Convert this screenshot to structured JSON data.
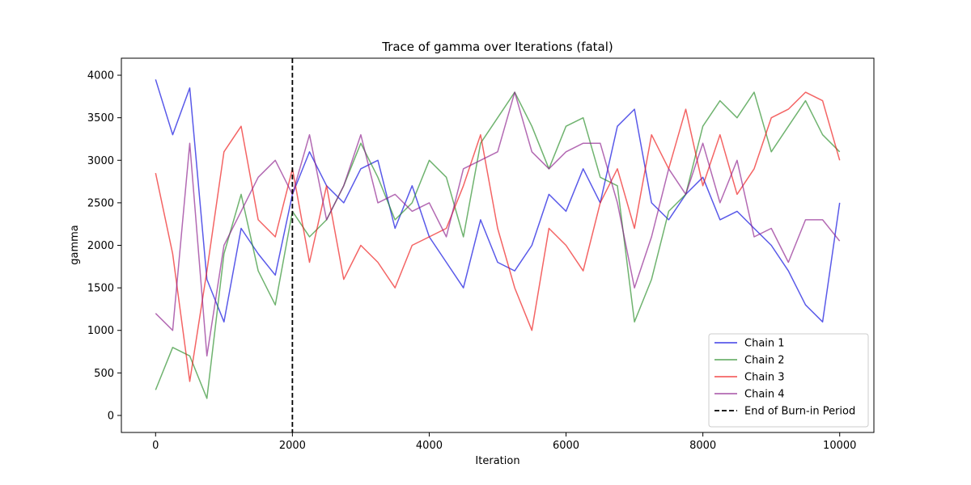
{
  "chart_data": {
    "type": "line",
    "title": "Trace of gamma over Iterations (fatal)",
    "xlabel": "Iteration",
    "ylabel": "gamma",
    "xlim": [
      -500,
      10500
    ],
    "ylim": [
      -200,
      4200
    ],
    "x_ticks": [
      0,
      2000,
      4000,
      6000,
      8000,
      10000
    ],
    "y_ticks": [
      0,
      500,
      1000,
      1500,
      2000,
      2500,
      3000,
      3500,
      4000
    ],
    "grid": false,
    "legend_position": "lower-right",
    "x": [
      0,
      250,
      500,
      750,
      1000,
      1250,
      1500,
      1750,
      2000,
      2250,
      2500,
      2750,
      3000,
      3250,
      3500,
      3750,
      4000,
      4250,
      4500,
      4750,
      5000,
      5250,
      5500,
      5750,
      6000,
      6250,
      6500,
      6750,
      7000,
      7250,
      7500,
      7750,
      8000,
      8250,
      8500,
      8750,
      9000,
      9250,
      9500,
      9750,
      10000
    ],
    "series": [
      {
        "name": "Chain 1",
        "color": "#0000dd",
        "values": [
          3950,
          3300,
          3850,
          1600,
          1100,
          2200,
          1900,
          1650,
          2600,
          3100,
          2700,
          2500,
          2900,
          3000,
          2200,
          2700,
          2100,
          1800,
          1500,
          2300,
          1800,
          1700,
          2000,
          2600,
          2400,
          2900,
          2500,
          3400,
          3600,
          2500,
          2300,
          2600,
          2800,
          2300,
          2400,
          2200,
          2000,
          1700,
          1300,
          1100,
          2500
        ]
      },
      {
        "name": "Chain 2",
        "color": "#228b22",
        "values": [
          300,
          800,
          700,
          200,
          1900,
          2600,
          1700,
          1300,
          2400,
          2100,
          2300,
          2700,
          3200,
          2800,
          2300,
          2500,
          3000,
          2800,
          2100,
          3200,
          3500,
          3800,
          3400,
          2900,
          3400,
          3500,
          2800,
          2700,
          1100,
          1600,
          2400,
          2600,
          3400,
          3700,
          3500,
          3800,
          3100,
          3400,
          3700,
          3300,
          3100
        ]
      },
      {
        "name": "Chain 3",
        "color": "#ee1111",
        "values": [
          2850,
          1900,
          400,
          1700,
          3100,
          3400,
          2300,
          2100,
          2900,
          1800,
          2700,
          1600,
          2000,
          1800,
          1500,
          2000,
          2100,
          2200,
          2700,
          3300,
          2200,
          1500,
          1000,
          2200,
          2000,
          1700,
          2500,
          2900,
          2200,
          3300,
          2900,
          3600,
          2700,
          3300,
          2600,
          2900,
          3500,
          3600,
          3800,
          3700,
          3000
        ]
      },
      {
        "name": "Chain 4",
        "color": "#8b1a8b",
        "values": [
          1200,
          1000,
          3200,
          700,
          2000,
          2400,
          2800,
          3000,
          2600,
          3300,
          2300,
          2700,
          3300,
          2500,
          2600,
          2400,
          2500,
          2100,
          2900,
          3000,
          3100,
          3800,
          3100,
          2900,
          3100,
          3200,
          3200,
          2500,
          1500,
          2100,
          2900,
          2600,
          3200,
          2500,
          3000,
          2100,
          2200,
          1800,
          2300,
          2300,
          2050
        ]
      }
    ],
    "annotations": [
      {
        "type": "vline",
        "x": 2000,
        "label": "End of Burn-in Period",
        "style": "dashed",
        "color": "#000000"
      }
    ]
  }
}
